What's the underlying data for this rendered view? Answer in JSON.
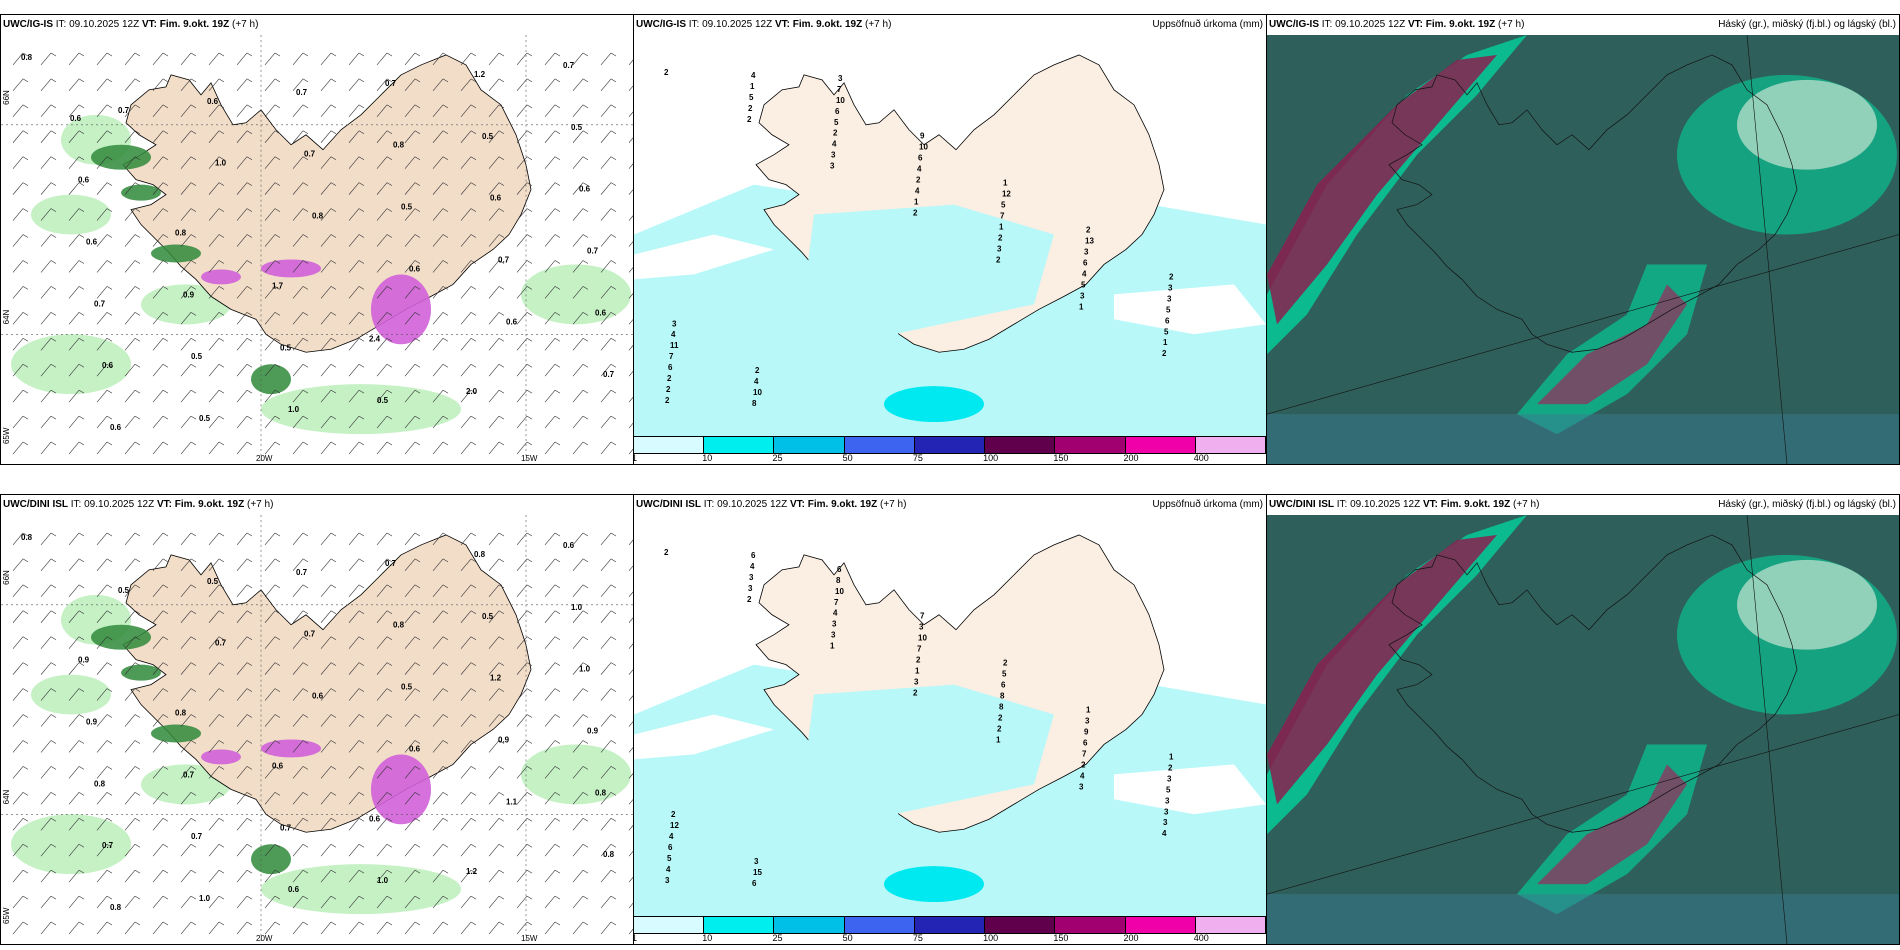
{
  "rows": [
    {
      "model": "UWC/IG-IS",
      "it_label": "IT:",
      "it_value": "09.10.2025 12Z",
      "vt_label": "VT:",
      "vt_value": "Fim. 9.okt. 19Z",
      "lead": "(+7 h)",
      "panel_left": {
        "lon_labels": [
          "20W",
          "15W"
        ],
        "lat_labels": [
          "66N",
          "64N",
          "65W"
        ],
        "values": [
          "0.8",
          "0.7",
          "1.0",
          "0.8",
          "0.6",
          "0.6",
          "0.7",
          "0.6",
          "0.6",
          "0.7",
          "0.5",
          "0.7",
          "0.6",
          "0.6",
          "0.5",
          "0.7",
          "0.8",
          "0.6",
          "0.7",
          "0.7",
          "0.5",
          "1.0",
          "0.7",
          "0.5",
          "0.6",
          "0.6",
          "0.9",
          "0.5",
          "0.5",
          "1.2",
          "0.5",
          "0.6",
          "0.8",
          "1.7",
          "2.4",
          "2.0",
          "0.7",
          "0.6"
        ]
      },
      "panel_mid": {
        "title": "Uppsöfnuð úrkoma (mm)",
        "values": [
          "2",
          "2",
          "3",
          "2",
          "2",
          "1",
          "2",
          "2",
          "2",
          "3",
          "1",
          "3",
          "3",
          "1",
          "2",
          "5",
          "4",
          "4",
          "2",
          "5",
          "5",
          "2",
          "1",
          "2",
          "2",
          "1",
          "4",
          "6",
          "6",
          "4",
          "5",
          "4",
          "7",
          "6",
          "5",
          "7",
          "8",
          "6",
          "6",
          "5",
          "3",
          "3",
          "11",
          "10",
          "10",
          "10",
          "12",
          "13",
          "3",
          "4",
          "4",
          "7",
          "9",
          "1",
          "2",
          "2",
          "3",
          "2",
          "3"
        ]
      },
      "panel_right": {
        "title": "Háský (gr.), miðský (fj.bl.) og lágský (bl.)"
      }
    },
    {
      "model": "UWC/DINI ISL",
      "it_label": "IT:",
      "it_value": "09.10.2025 12Z",
      "vt_label": "VT:",
      "vt_value": "Fim. 9.okt. 19Z",
      "lead": "(+7 h)",
      "panel_left": {
        "lon_labels": [
          "20W",
          "15W"
        ],
        "lat_labels": [
          "66N",
          "64N",
          "65W"
        ],
        "values": [
          "0.8",
          "0.5",
          "0.7",
          "0.6",
          "0.6",
          "1.1",
          "0.8",
          "0.8",
          "0.5",
          "0.7",
          "0.5",
          "0.9",
          "0.8",
          "0.7",
          "1.0",
          "0.7",
          "0.8",
          "1.2",
          "0.9",
          "0.8",
          "0.7",
          "0.6",
          "0.7",
          "0.5",
          "1.0",
          "0.9",
          "0.7",
          "0.7",
          "1.0",
          "0.8",
          "1.0",
          "0.9",
          "0.8",
          "0.6",
          "0.6",
          "1.2",
          "0.6"
        ]
      },
      "panel_mid": {
        "title": "Uppsöfnuð úrkoma (mm)",
        "values": [
          "2",
          "2",
          "1",
          "2",
          "1",
          "3",
          "4",
          "3",
          "3",
          "3",
          "3",
          "2",
          "4",
          "3",
          "4",
          "3",
          "3",
          "1",
          "2",
          "2",
          "3",
          "5",
          "4",
          "4",
          "2",
          "8",
          "7",
          "3",
          "6",
          "6",
          "7",
          "7",
          "8",
          "6",
          "5",
          "4",
          "6",
          "10",
          "10",
          "6",
          "9",
          "3",
          "12",
          "15",
          "8",
          "3",
          "5",
          "3",
          "2",
          "2",
          "3",
          "6",
          "7",
          "2",
          "1",
          "1"
        ]
      },
      "panel_right": {
        "title": "Háský (gr.), miðský (fj.bl.) og lágský (bl.)"
      }
    }
  ],
  "colorbar": {
    "ticks": [
      "1",
      "10",
      "25",
      "50",
      "75",
      "100",
      "150",
      "200",
      "400"
    ],
    "colors": [
      "#d8fbff",
      "#00eeee",
      "#00c0e8",
      "#3c64f0",
      "#2424b4",
      "#60004c",
      "#a00070",
      "#f000a8",
      "#f0b0f0"
    ]
  }
}
